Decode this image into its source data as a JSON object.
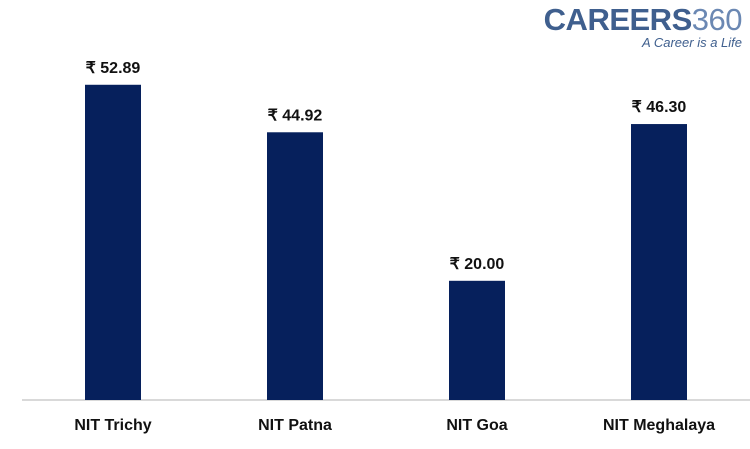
{
  "logo": {
    "brand": "CAREERS",
    "brand_number": "360",
    "tagline": "A Career is a Life"
  },
  "colors": {
    "bar": "#06205c",
    "axis": "#b3b3b3",
    "text": "#111111",
    "logo": "#3f5f8e"
  },
  "chart_data": {
    "type": "bar",
    "categories": [
      "NIT Trichy",
      "NIT Patna",
      "NIT Goa",
      "NIT Meghalaya"
    ],
    "values": [
      52.89,
      44.92,
      20.0,
      46.3
    ],
    "value_labels": [
      "₹ 52.89",
      "₹ 44.92",
      "₹ 20.00",
      "₹ 46.30"
    ],
    "title": "",
    "xlabel": "",
    "ylabel": "",
    "ylim": [
      0,
      60
    ],
    "grid": false,
    "legend": "none"
  }
}
